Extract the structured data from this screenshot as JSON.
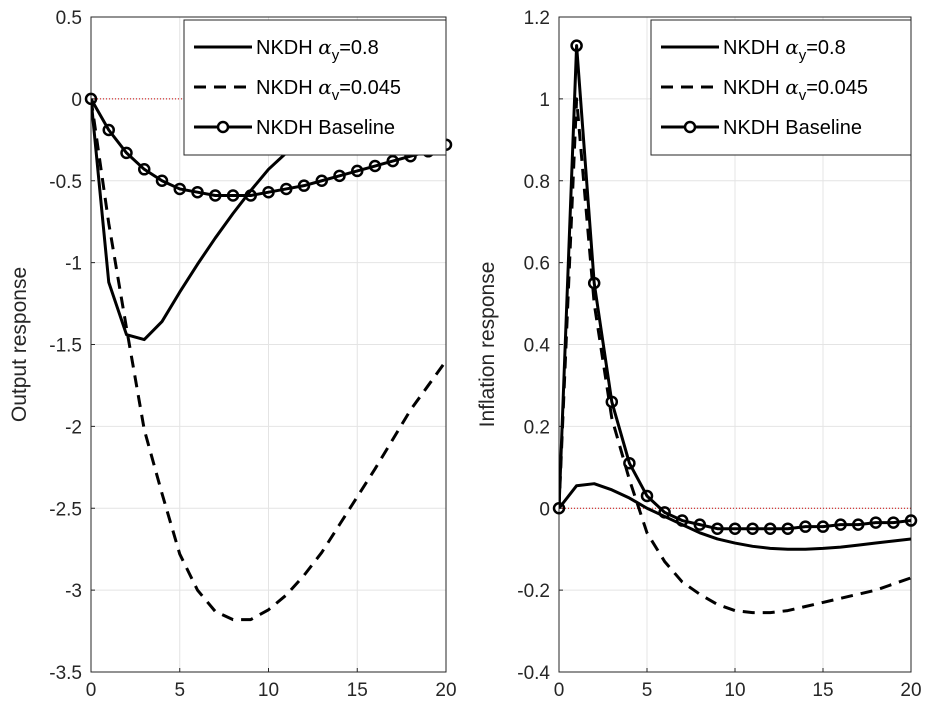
{
  "chart_data": [
    {
      "type": "line",
      "title": "",
      "xlabel": "",
      "ylabel": "Output response",
      "xlim": [
        0,
        20
      ],
      "ylim": [
        -3.5,
        0.5
      ],
      "xticks": [
        "0",
        "5",
        "10",
        "15",
        "20"
      ],
      "yticks": [
        "-3.5",
        "-3",
        "-2.5",
        "-2",
        "-1.5",
        "-1",
        "-0.5",
        "0",
        "0.5"
      ],
      "grid": true,
      "legend_position": "top-right",
      "zero_line_color": "#cc0000",
      "series": [
        {
          "name": "NKDH α_y=0.8",
          "legend_prefix": "NKDH ",
          "legend_symbol": "α",
          "legend_subscript": "y",
          "legend_suffix": "=0.8",
          "style": "solid",
          "color": "#000000",
          "x": [
            0,
            1,
            2,
            3,
            4,
            5,
            6,
            7,
            8,
            9,
            10,
            11,
            12,
            13,
            14,
            15,
            16,
            17,
            18,
            19,
            20
          ],
          "values": [
            0,
            -1.12,
            -1.44,
            -1.47,
            -1.36,
            -1.18,
            -1.01,
            -0.85,
            -0.7,
            -0.56,
            -0.43,
            -0.33,
            -0.23,
            -0.15,
            -0.08,
            -0.03,
            0.02,
            0.06,
            0.1,
            0.13,
            0.14
          ]
        },
        {
          "name": "NKDH α_v=0.045",
          "legend_prefix": "NKDH ",
          "legend_symbol": "α",
          "legend_subscript": "v",
          "legend_suffix": "=0.045",
          "style": "dashed",
          "color": "#000000",
          "x": [
            0,
            1,
            2,
            3,
            4,
            5,
            6,
            7,
            8,
            9,
            10,
            11,
            12,
            13,
            14,
            15,
            16,
            17,
            18,
            19,
            20
          ],
          "values": [
            0,
            -0.76,
            -1.4,
            -2.02,
            -2.41,
            -2.78,
            -3.0,
            -3.13,
            -3.18,
            -3.18,
            -3.12,
            -3.03,
            -2.91,
            -2.77,
            -2.6,
            -2.43,
            -2.26,
            -2.08,
            -1.9,
            -1.75,
            -1.6
          ]
        },
        {
          "name": "NKDH Baseline",
          "legend_prefix": "NKDH Baseline",
          "style": "solid-circle",
          "color": "#000000",
          "x": [
            0,
            1,
            2,
            3,
            4,
            5,
            6,
            7,
            8,
            9,
            10,
            11,
            12,
            13,
            14,
            15,
            16,
            17,
            18,
            19,
            20
          ],
          "values": [
            0,
            -0.19,
            -0.33,
            -0.43,
            -0.5,
            -0.55,
            -0.57,
            -0.59,
            -0.59,
            -0.59,
            -0.57,
            -0.55,
            -0.53,
            -0.5,
            -0.47,
            -0.44,
            -0.41,
            -0.38,
            -0.35,
            -0.32,
            -0.28
          ]
        }
      ]
    },
    {
      "type": "line",
      "title": "",
      "xlabel": "",
      "ylabel": "Inflation response",
      "xlim": [
        0,
        20
      ],
      "ylim": [
        -0.4,
        1.2
      ],
      "xticks": [
        "0",
        "5",
        "10",
        "15",
        "20"
      ],
      "yticks": [
        "-0.4",
        "-0.2",
        "0",
        "0.2",
        "0.4",
        "0.6",
        "0.8",
        "1",
        "1.2"
      ],
      "grid": true,
      "legend_position": "top-right",
      "zero_line_color": "#cc0000",
      "series": [
        {
          "name": "NKDH α_y=0.8",
          "legend_prefix": "NKDH ",
          "legend_symbol": "α",
          "legend_subscript": "y",
          "legend_suffix": "=0.8",
          "style": "solid",
          "color": "#000000",
          "x": [
            0,
            1,
            2,
            3,
            4,
            5,
            6,
            7,
            8,
            9,
            10,
            11,
            12,
            13,
            14,
            15,
            16,
            17,
            18,
            19,
            20
          ],
          "values": [
            0,
            0.055,
            0.06,
            0.045,
            0.025,
            0.0,
            -0.02,
            -0.04,
            -0.06,
            -0.075,
            -0.085,
            -0.093,
            -0.098,
            -0.1,
            -0.1,
            -0.098,
            -0.095,
            -0.09,
            -0.085,
            -0.08,
            -0.075
          ]
        },
        {
          "name": "NKDH α_v=0.045",
          "legend_prefix": "NKDH ",
          "legend_symbol": "α",
          "legend_subscript": "v",
          "legend_suffix": "=0.045",
          "style": "dashed",
          "color": "#000000",
          "x": [
            0,
            1,
            2,
            3,
            4,
            5,
            6,
            7,
            8,
            9,
            10,
            11,
            12,
            13,
            14,
            15,
            16,
            17,
            18,
            19,
            20
          ],
          "values": [
            0,
            1.0,
            0.5,
            0.22,
            0.07,
            -0.06,
            -0.13,
            -0.18,
            -0.21,
            -0.235,
            -0.25,
            -0.255,
            -0.255,
            -0.25,
            -0.24,
            -0.23,
            -0.22,
            -0.21,
            -0.2,
            -0.185,
            -0.17
          ]
        },
        {
          "name": "NKDH Baseline",
          "legend_prefix": "NKDH Baseline",
          "style": "solid-circle",
          "color": "#000000",
          "x": [
            0,
            1,
            2,
            3,
            4,
            5,
            6,
            7,
            8,
            9,
            10,
            11,
            12,
            13,
            14,
            15,
            16,
            17,
            18,
            19,
            20
          ],
          "values": [
            0,
            1.13,
            0.55,
            0.26,
            0.11,
            0.03,
            -0.01,
            -0.03,
            -0.04,
            -0.05,
            -0.05,
            -0.05,
            -0.05,
            -0.05,
            -0.045,
            -0.045,
            -0.04,
            -0.04,
            -0.035,
            -0.035,
            -0.03
          ]
        }
      ]
    }
  ]
}
